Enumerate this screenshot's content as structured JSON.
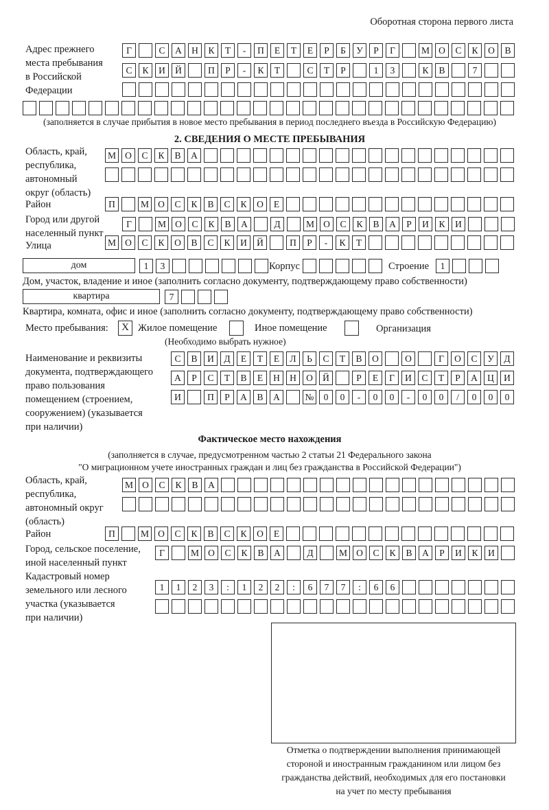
{
  "header": {
    "page_side": "Оборотная сторона первого листа"
  },
  "previous_address": {
    "label": "Адрес прежнего\nместа пребывания\nв Российской\nФедерации",
    "rows": [
      "Г САНКТ-ПЕТЕРБУРГ МОСКОВ",
      "СКИЙ ПР-КТ СТР 13 КВ 7  ",
      "",
      ""
    ],
    "note": "(заполняется в случае прибытия в новое место пребывания в период последнего въезда в Российскую Федерацию)"
  },
  "section2": {
    "title": "2. СВЕДЕНИЯ О МЕСТЕ ПРЕБЫВАНИЯ",
    "region_label": "Область, край,\nреспублика,\nавтономный\nокруг (область)",
    "region_rows": [
      "МОСКВА",
      ""
    ],
    "district_label": "Район",
    "district_row": "П МОСКВСКОЕ",
    "city_label": "Город или другой\nнаселенный пункт",
    "city_row": "Г МОСКВА Д МОСКВАРИКИ",
    "street_label": "Улица",
    "street_row": "МОСКОВСКИЙ ПР-КТ",
    "house_type": "дом",
    "house_number": "13",
    "korpus_label": "Корпус",
    "korpus_value": "",
    "building_label": "Строение",
    "building_value": "1",
    "house_note": "Дом, участок, владение и иное (заполнить согласно документу, подтверждающему право собственности)",
    "apartment_type": "квартира",
    "apartment_number": "7",
    "apartment_note": "Квартира, комната, офис и иное (заполнить согласно документу, подтверждающему право собственности)",
    "stay_place_label": "Место пребывания:",
    "stay_options": [
      {
        "label": "Жилое помещение",
        "mark": "Х",
        "checked": true
      },
      {
        "label": "Иное помещение",
        "mark": "",
        "checked": false
      },
      {
        "label": "Организация",
        "mark": "",
        "checked": false
      }
    ],
    "stay_note": "(Необходимо выбрать нужное)",
    "document_label": "Наименование и реквизиты\nдокумента, подтверждающего\nправо пользования\nпомещением (строением,\nсооружением) (указывается\nпри наличии)",
    "document_rows": [
      "СВИДЕТЕЛЬСТВО О ГОСУД",
      "АРСТВЕННОЙ РЕГИСТРАЦИ",
      "И ПРАВА №00-00-00/000"
    ]
  },
  "actual_location": {
    "title": "Фактическое место нахождения",
    "note_line1": "(заполняется в случае, предусмотренном частью 2 статьи 21 Федерального закона",
    "note_line2": "\"О миграционном учете иностранных граждан и лиц без гражданства в Российской Федерации\")",
    "region_label": "Область, край,\nреспублика,\nавтономный округ\n(область)",
    "region_rows": [
      "МОСКВА",
      ""
    ],
    "district_label": "Район",
    "district_row": "П МОСКВСКОЕ",
    "city_label": "Город, сельское поселение,\nиной населенный пункт",
    "city_row": "Г МОСКВА Д МОСКВАРИКИ",
    "cadastral_label": "Кадастровый номер\nземельного или лесного\nучастка (указывается\nпри наличии)",
    "cadastral_rows": [
      "1123:122:677:66",
      ""
    ]
  },
  "confirmation": {
    "caption": "Отметка о подтверждении выполнения принимающей\nстороной и иностранным гражданином или лицом без\nгражданства действий, необходимых для его постановки\nна учет по месту пребывания"
  }
}
